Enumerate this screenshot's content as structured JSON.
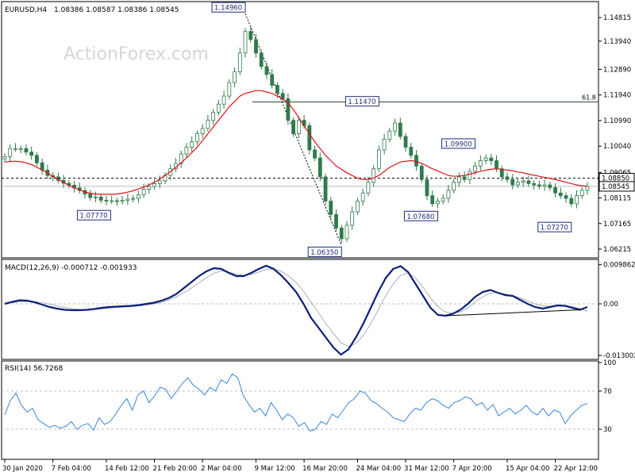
{
  "chart_data": {
    "type": "candlestick",
    "symbol_label": "EURUSD,H4",
    "ohlc_label": "1.08386 1.08587 1.08386 1.08545",
    "watermark": "ActionForex.com",
    "colors": {
      "candles": "#2f7a4b",
      "ma": "#e0101a",
      "macd": "#0c1f7a",
      "signal": "#a9aec0",
      "rsi": "#3a86d8",
      "price_box": "#1c2c7a"
    },
    "price_panel": {
      "ylim": [
        1.0595,
        1.1535
      ],
      "tick_labels": [
        {
          "label": "1.14815",
          "value": 1.14815
        },
        {
          "label": "1.13940",
          "value": 1.1394
        },
        {
          "label": "1.12890",
          "value": 1.1289
        },
        {
          "label": "1.11940",
          "value": 1.1194
        },
        {
          "label": "1.10990",
          "value": 1.1099
        },
        {
          "label": "1.10040",
          "value": 1.1004
        },
        {
          "label": "1.09065",
          "value": 1.09065
        },
        {
          "label": "1.08115",
          "value": 1.08115
        },
        {
          "label": "1.07165",
          "value": 1.07165
        },
        {
          "label": "1.06215",
          "value": 1.06215
        }
      ],
      "current_price": {
        "label": "1.08545",
        "value": 1.08545
      },
      "dashed_level": {
        "label": "1.08850",
        "value": 1.0885
      },
      "fib_level": {
        "label": "61.8",
        "value": 1.1168
      },
      "annotations": [
        {
          "label": "1.14960",
          "value": 1.1496,
          "slot": 45
        },
        {
          "label": "1.07770",
          "value": 1.0777,
          "slot": 21
        },
        {
          "label": "1.06350",
          "value": 1.0635,
          "slot": 63
        },
        {
          "label": "1.11470",
          "value": 1.1147,
          "slot": 70
        },
        {
          "label": "1.07680",
          "value": 1.0768,
          "slot": 81
        },
        {
          "label": "1.09900",
          "value": 1.099,
          "slot": 88
        },
        {
          "label": "1.07270",
          "value": 1.0727,
          "slot": 106
        }
      ],
      "close": [
        1.0965,
        1.0995,
        1.0995,
        1.0995,
        1.0982,
        1.097,
        1.0942,
        1.0915,
        1.0895,
        1.089,
        1.0877,
        1.0866,
        1.0859,
        1.0849,
        1.0839,
        1.0826,
        1.0813,
        1.0815,
        1.0803,
        1.0801,
        1.0801,
        1.0799,
        1.0803,
        1.0807,
        1.081,
        1.0823,
        1.0844,
        1.0854,
        1.0865,
        1.0875,
        1.0895,
        1.092,
        1.094,
        1.0975,
        1.1,
        1.102,
        1.105,
        1.107,
        1.11,
        1.113,
        1.116,
        1.119,
        1.124,
        1.128,
        1.135,
        1.143,
        1.14,
        1.135,
        1.13,
        1.127,
        1.123,
        1.12,
        1.118,
        1.11,
        1.105,
        1.11,
        1.108,
        1.099,
        1.096,
        1.089,
        1.08,
        1.075,
        1.07,
        1.066,
        1.071,
        1.076,
        1.08,
        1.083,
        1.087,
        1.092,
        1.099,
        1.103,
        1.106,
        1.109,
        1.104,
        1.1,
        1.097,
        1.093,
        1.088,
        1.082,
        1.079,
        1.08,
        1.081,
        1.084,
        1.087,
        1.089,
        1.088,
        1.091,
        1.093,
        1.095,
        1.096,
        1.095,
        1.092,
        1.089,
        1.088,
        1.086,
        1.087,
        1.0875,
        1.0865,
        1.086,
        1.0855,
        1.086,
        1.085,
        1.083,
        1.082,
        1.081,
        1.079,
        1.082,
        1.084,
        1.0854
      ],
      "ma": [
        1.0945,
        1.0947,
        1.0948,
        1.0946,
        1.0942,
        1.0935,
        1.0926,
        1.0915,
        1.0904,
        1.0892,
        1.088,
        1.0869,
        1.0858,
        1.0849,
        1.0841,
        1.0834,
        1.0829,
        1.0826,
        1.0825,
        1.0825,
        1.0825,
        1.0826,
        1.0829,
        1.0833,
        1.0838,
        1.0845,
        1.0852,
        1.086,
        1.087,
        1.0882,
        1.0895,
        1.091,
        1.0925,
        1.0942,
        1.096,
        1.098,
        1.1,
        1.1025,
        1.105,
        1.1075,
        1.11,
        1.1125,
        1.115,
        1.117,
        1.119,
        1.12,
        1.1205,
        1.121,
        1.121,
        1.1205,
        1.12,
        1.119,
        1.118,
        1.1165,
        1.114,
        1.111,
        1.108,
        1.105,
        1.102,
        1.0995,
        1.097,
        1.095,
        1.093,
        1.0918,
        1.0905,
        1.0895,
        1.0885,
        1.088,
        1.088,
        1.0885,
        1.0895,
        1.091,
        1.0925,
        1.0935,
        1.0945,
        1.0948,
        1.095,
        1.0947,
        1.094,
        1.093,
        1.092,
        1.0912,
        1.0903,
        1.0895,
        1.0892,
        1.0893,
        1.0895,
        1.09,
        1.0905,
        1.091,
        1.0915,
        1.0918,
        1.092,
        1.0918,
        1.0915,
        1.0912,
        1.0908,
        1.0905,
        1.09,
        1.0896,
        1.0892,
        1.0888,
        1.0884,
        1.088,
        1.0875,
        1.087,
        1.0865,
        1.086,
        1.0857,
        1.0855
      ]
    },
    "macd_panel": {
      "label": "MACD(12,26,9) -0.000712 -0.001933",
      "ylim": [
        -0.0136,
        0.0108
      ],
      "tick_labels": [
        {
          "label": "0.009862",
          "value": 0.009862
        },
        {
          "label": "0.00",
          "value": 0.0
        },
        {
          "label": "-0.013002",
          "value": -0.013002
        }
      ],
      "macd": [
        0.0,
        0.0005,
        0.0009,
        0.0008,
        0.0004,
        -0.0002,
        -0.0008,
        -0.0012,
        -0.0015,
        -0.0016,
        -0.0016,
        -0.0015,
        -0.0013,
        -0.001,
        -0.0008,
        -0.0007,
        -0.0006,
        -0.0005,
        -0.0003,
        0.0,
        0.0003,
        0.0008,
        0.0015,
        0.0025,
        0.004,
        0.0055,
        0.007,
        0.0082,
        0.009,
        0.0088,
        0.0078,
        0.007,
        0.007,
        0.0078,
        0.0088,
        0.0096,
        0.0088,
        0.0072,
        0.0052,
        0.003,
        0.0,
        -0.0035,
        -0.006,
        -0.0085,
        -0.011,
        -0.0128,
        -0.0115,
        -0.0085,
        -0.005,
        -0.001,
        0.003,
        0.0065,
        0.0088,
        0.0095,
        0.008,
        0.005,
        0.002,
        -0.001,
        -0.0028,
        -0.003,
        -0.0025,
        -0.0015,
        0.0,
        0.0018,
        0.003,
        0.0035,
        0.0028,
        0.0022,
        0.002,
        0.001,
        0.0,
        -0.0008,
        -0.0012,
        -0.0008,
        -0.0004,
        -0.0005,
        -0.001,
        -0.0015,
        -0.0008
      ],
      "signal": [
        0.0002,
        0.0003,
        0.0005,
        0.0006,
        0.0005,
        0.0003,
        -0.0001,
        -0.0005,
        -0.0009,
        -0.0012,
        -0.0014,
        -0.0015,
        -0.0014,
        -0.0013,
        -0.0011,
        -0.0009,
        -0.0008,
        -0.0007,
        -0.0005,
        -0.0003,
        0.0,
        0.0004,
        0.001,
        0.0018,
        0.0028,
        0.004,
        0.0053,
        0.0066,
        0.0077,
        0.0083,
        0.008,
        0.0075,
        0.0072,
        0.0074,
        0.008,
        0.0087,
        0.0088,
        0.0082,
        0.007,
        0.0054,
        0.0032,
        0.0005,
        -0.0022,
        -0.005,
        -0.0075,
        -0.0098,
        -0.0108,
        -0.01,
        -0.008,
        -0.005,
        -0.0015,
        0.002,
        0.005,
        0.0072,
        0.0078,
        0.0065,
        0.0042,
        0.0015,
        -0.0008,
        -0.002,
        -0.0024,
        -0.002,
        -0.001,
        0.0005,
        0.0018,
        0.0027,
        0.0028,
        0.0025,
        0.0021,
        0.0015,
        0.0007,
        0.0,
        -0.0005,
        -0.0006,
        -0.0005,
        -0.0005,
        -0.0008,
        -0.0012,
        -0.0019
      ],
      "trendline": [
        {
          "idx": 59,
          "value": -0.003
        },
        {
          "idx": 77,
          "value": -0.0015
        }
      ]
    },
    "rsi_panel": {
      "label": "RSI(14) 56.7268",
      "ylim": [
        0,
        100
      ],
      "tick_labels": [
        {
          "label": "100",
          "value": 100
        },
        {
          "label": "70",
          "value": 70
        },
        {
          "label": "30",
          "value": 30
        }
      ],
      "guide_levels": [
        70,
        30
      ],
      "values": [
        45,
        60,
        68,
        55,
        48,
        52,
        40,
        36,
        32,
        34,
        31,
        33,
        38,
        30,
        34,
        36,
        29,
        42,
        35,
        38,
        46,
        55,
        62,
        50,
        66,
        70,
        58,
        65,
        74,
        72,
        62,
        70,
        78,
        84,
        76,
        72,
        66,
        74,
        70,
        82,
        78,
        88,
        84,
        65,
        56,
        48,
        52,
        44,
        58,
        50,
        40,
        46,
        42,
        33,
        37,
        28,
        30,
        38,
        35,
        46,
        42,
        50,
        58,
        62,
        70,
        68,
        60,
        57,
        52,
        48,
        42,
        40,
        38,
        46,
        52,
        50,
        58,
        62,
        60,
        55,
        52,
        58,
        60,
        64,
        62,
        55,
        58,
        50,
        56,
        44,
        48,
        52,
        46,
        50,
        55,
        48,
        45,
        52,
        44,
        50,
        48,
        36,
        44,
        50,
        55,
        57
      ]
    },
    "x_labels": [
      {
        "label": "30 Jan 2020",
        "slot": 0
      },
      {
        "label": "7 Feb 04:00",
        "slot": 9
      },
      {
        "label": "14 Feb 12:00",
        "slot": 19
      },
      {
        "label": "21 Feb 20:00",
        "slot": 28
      },
      {
        "label": "2 Mar 04:00",
        "slot": 37
      },
      {
        "label": "9 Mar 12:00",
        "slot": 47
      },
      {
        "label": "16 Mar 20:00",
        "slot": 56
      },
      {
        "label": "24 Mar 04:00",
        "slot": 66
      },
      {
        "label": "31 Mar 12:00",
        "slot": 75
      },
      {
        "label": "7 Apr 20:00",
        "slot": 84
      },
      {
        "label": "15 Apr 04:00",
        "slot": 94
      },
      {
        "label": "22 Apr 12:00",
        "slot": 103
      }
    ]
  }
}
